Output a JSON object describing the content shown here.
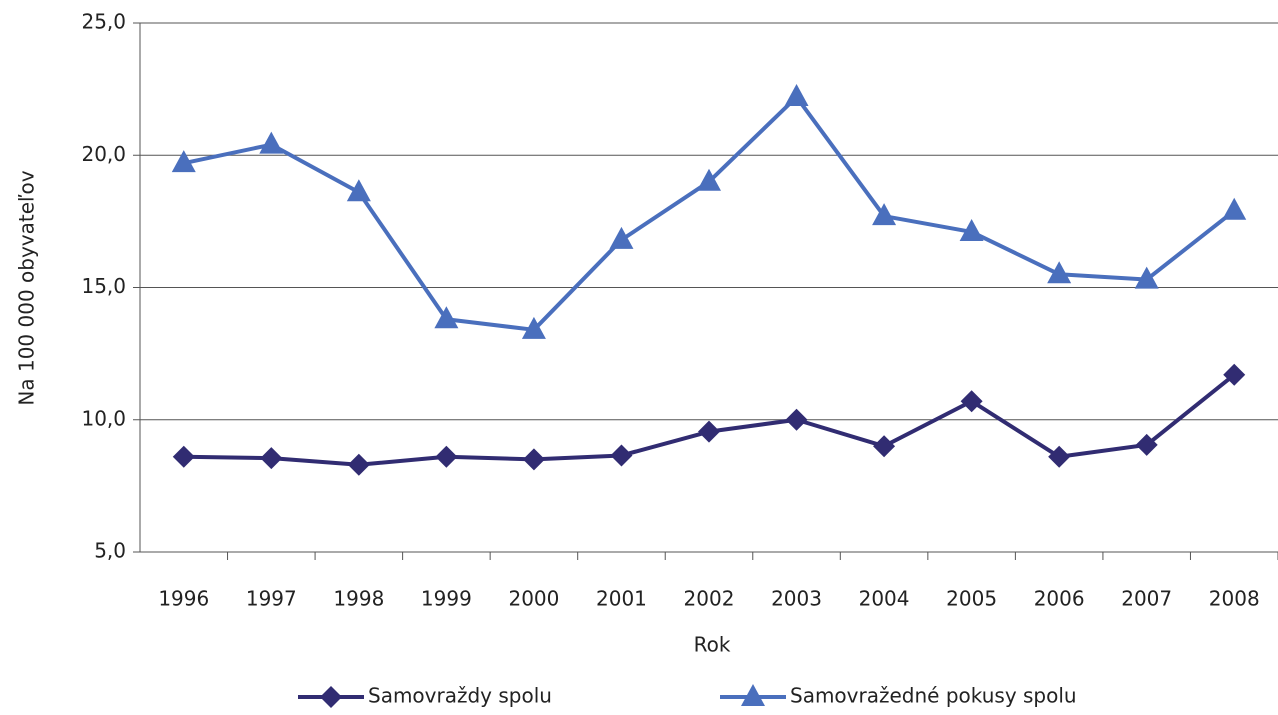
{
  "chart_data": {
    "type": "line",
    "x_label": "Rok",
    "y_label": "Na 100 000 obyvateľov",
    "categories": [
      "1996",
      "1997",
      "1998",
      "1999",
      "2000",
      "2001",
      "2002",
      "2003",
      "2004",
      "2005",
      "2006",
      "2007",
      "2008"
    ],
    "series": [
      {
        "name": "Samovraždy spolu",
        "color": "#312c72",
        "marker": "diamond",
        "values": [
          8.6,
          8.55,
          8.3,
          8.6,
          8.5,
          8.65,
          9.55,
          10.0,
          9.0,
          10.7,
          8.6,
          9.05,
          11.7
        ]
      },
      {
        "name": "Samovražedné pokusy spolu",
        "color": "#4a6fbd",
        "marker": "triangle",
        "values": [
          19.7,
          20.4,
          18.6,
          13.8,
          13.4,
          16.8,
          19.0,
          22.2,
          17.7,
          17.1,
          15.5,
          15.3,
          17.9
        ]
      }
    ],
    "ylim": [
      5,
      25
    ],
    "yticks": [
      {
        "value": 5,
        "label": "5,0"
      },
      {
        "value": 10,
        "label": "10,0"
      },
      {
        "value": 15,
        "label": "15,0"
      },
      {
        "value": 20,
        "label": "20,0"
      },
      {
        "value": 25,
        "label": "25,0"
      }
    ],
    "grid": true,
    "legend": "bottom"
  }
}
